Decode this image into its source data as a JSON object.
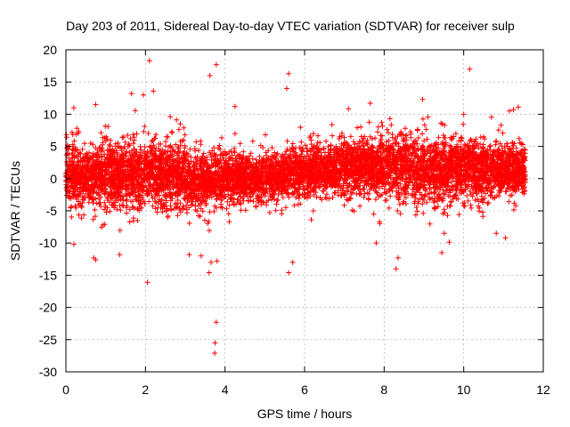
{
  "chart_data": {
    "type": "scatter",
    "title": "Day 203 of 2011, Sidereal Day-to-day VTEC variation (SDTVAR) for receiver sulp",
    "xlabel": "GPS time / hours",
    "ylabel": "SDTVAR / TECUs",
    "xlim": [
      0,
      12
    ],
    "ylim": [
      -30,
      20
    ],
    "xticks": [
      0,
      2,
      4,
      6,
      8,
      10,
      12
    ],
    "yticks": [
      -30,
      -25,
      -20,
      -15,
      -10,
      -5,
      0,
      5,
      10,
      15,
      20
    ],
    "grid": true,
    "marker": "+",
    "color": "#ff0000",
    "series": [
      {
        "name": "SDTVAR",
        "description_note": "dense band of points spanning x 0 to 11.6 h; core centred near 0 to 2 TECU with typical spread of about -5 to +7 TECU",
        "outliers": [
          {
            "x": 2.1,
            "y": 18.3
          },
          {
            "x": 3.78,
            "y": 17.7
          },
          {
            "x": 3.62,
            "y": 16.0
          },
          {
            "x": 5.6,
            "y": 16.3
          },
          {
            "x": 10.15,
            "y": 17.0
          },
          {
            "x": 5.55,
            "y": 14.0
          },
          {
            "x": 2.05,
            "y": -16.1
          },
          {
            "x": 3.78,
            "y": -22.3
          },
          {
            "x": 3.75,
            "y": -25.5
          },
          {
            "x": 3.74,
            "y": -27.1
          },
          {
            "x": 3.6,
            "y": -14.6
          },
          {
            "x": 5.6,
            "y": -14.6
          },
          {
            "x": 5.7,
            "y": -13.0
          },
          {
            "x": 8.3,
            "y": -14.0
          },
          {
            "x": 8.35,
            "y": -12.3
          },
          {
            "x": 0.7,
            "y": -12.3
          },
          {
            "x": 0.75,
            "y": -12.6
          },
          {
            "x": 1.35,
            "y": -11.8
          },
          {
            "x": 3.1,
            "y": -11.8
          },
          {
            "x": 3.4,
            "y": -12.0
          },
          {
            "x": 3.65,
            "y": -13.0
          },
          {
            "x": 3.8,
            "y": -12.8
          },
          {
            "x": 9.45,
            "y": -11.5
          },
          {
            "x": 7.8,
            "y": -10.0
          },
          {
            "x": 0.2,
            "y": -10.2
          },
          {
            "x": 11.05,
            "y": -9.2
          },
          {
            "x": 10.0,
            "y": 10.0
          },
          {
            "x": 11.15,
            "y": 10.5
          },
          {
            "x": 11.25,
            "y": 10.7
          },
          {
            "x": 7.65,
            "y": 11.7
          },
          {
            "x": 2.2,
            "y": 13.6
          },
          {
            "x": 1.95,
            "y": 13.0
          },
          {
            "x": 1.65,
            "y": 13.2
          },
          {
            "x": 0.2,
            "y": 11.0
          },
          {
            "x": 0.75,
            "y": 11.5
          },
          {
            "x": 4.25,
            "y": 11.2
          }
        ]
      }
    ]
  }
}
